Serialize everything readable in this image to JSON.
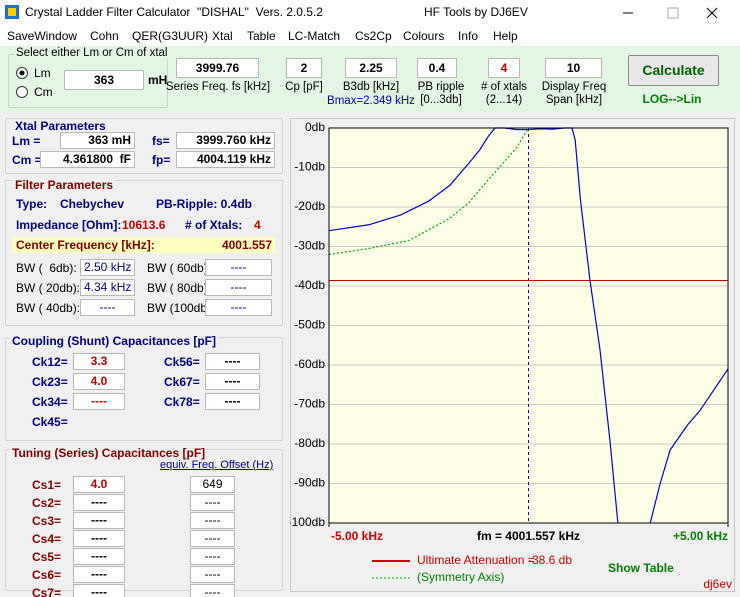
{
  "window": {
    "title": "Crystal Ladder Filter Calculator  \"DISHAL\"  Vers. 2.0.5.2",
    "author": "HF Tools by DJ6EV"
  },
  "menu": [
    "SaveWindow",
    "Cohn",
    "QER(G3UUR)",
    "Xtal",
    "Table",
    "LC-Match",
    "Cs2Cp",
    "Colours",
    "Info",
    "Help"
  ],
  "input_panel": {
    "select_label": "Select either Lm or Cm of xtal",
    "lm_option": "Lm",
    "cm_option": "Cm",
    "lm_value": "363",
    "lm_unit": "mH",
    "fs": {
      "value": "3999.76",
      "label": "Series Freq. fs [kHz]"
    },
    "cp": {
      "value": "2",
      "label": "Cp [pF]"
    },
    "b3db": {
      "value": "2.25",
      "label": "B3db [kHz]",
      "note": "Bmax=2.349 kHz"
    },
    "ripple": {
      "value": "0.4",
      "label": "PB ripple",
      "range": "[0...3db]"
    },
    "xtals": {
      "value": "4",
      "label": "# of xtals",
      "range": "(2...14)"
    },
    "span": {
      "value": "10",
      "label": "Display Freq",
      "unit": "Span [kHz]"
    },
    "calculate": "Calculate",
    "scale_toggle": "LOG-->Lin"
  },
  "xtal_parameters": {
    "title": "Xtal Parameters",
    "lm_label": "Lm =",
    "lm": "363 mH",
    "fs_label": "fs=",
    "fs": "3999.760 kHz",
    "cm_label": "Cm =",
    "cm": "4.361800  fF",
    "fp_label": "fp=",
    "fp": "4004.119 kHz"
  },
  "filter_parameters": {
    "title": "Filter Parameters",
    "type_label": "Type:",
    "type": "Chebychev",
    "ripple": "PB-Ripple: 0.4db",
    "impedance_label": "Impedance [Ohm]:",
    "impedance": "10613.6",
    "xtals_label": "# of Xtals:",
    "xtals": "4",
    "center_label": "Center Frequency [kHz]:",
    "center": "4001.557",
    "bandwidths": [
      {
        "label": "BW (  6db):",
        "value": "2.50 kHz"
      },
      {
        "label": "BW ( 60db):",
        "value": "----"
      },
      {
        "label": "BW ( 20db):",
        "value": "4.34 kHz"
      },
      {
        "label": "BW ( 80db):",
        "value": "----"
      },
      {
        "label": "BW ( 40db):",
        "value": "----"
      },
      {
        "label": "BW (100db):",
        "value": "----"
      }
    ]
  },
  "coupling": {
    "title": "Coupling (Shunt) Capacitances [pF]",
    "rows": [
      {
        "label": "Ck12=",
        "value": "3.3"
      },
      {
        "label": "Ck23=",
        "value": "4.0"
      },
      {
        "label": "Ck34=",
        "value": "----"
      },
      {
        "label": "Ck45="
      },
      {
        "label": "Ck56=",
        "value": "----"
      },
      {
        "label": "Ck67=",
        "value": "----"
      },
      {
        "label": "Ck78=",
        "value": "----"
      }
    ]
  },
  "tuning": {
    "title": "Tuning (Series) Capacitances [pF]",
    "offset_header": "equiv. Freq. Offset (Hz)",
    "rows": [
      {
        "label": "Cs1=",
        "value": "4.0",
        "offset": "649"
      },
      {
        "label": "Cs2=",
        "value": "----",
        "offset": "----"
      },
      {
        "label": "Cs3=",
        "value": "----",
        "offset": "----"
      },
      {
        "label": "Cs4=",
        "value": "----",
        "offset": "----"
      },
      {
        "label": "Cs5=",
        "value": "----",
        "offset": "----"
      },
      {
        "label": "Cs6=",
        "value": "----",
        "offset": "----"
      },
      {
        "label": "Cs7=",
        "value": "----",
        "offset": "----"
      }
    ]
  },
  "chart_data": {
    "type": "line",
    "xlim": [
      -5,
      5
    ],
    "ylim": [
      -100,
      0
    ],
    "grid": true,
    "yticks": [
      {
        "value": 0,
        "label": "0db"
      },
      {
        "value": -10,
        "label": "-10db"
      },
      {
        "value": -20,
        "label": "-20db"
      },
      {
        "value": -30,
        "label": "-30db"
      },
      {
        "value": -40,
        "label": "-40db"
      },
      {
        "value": -50,
        "label": "-50db"
      },
      {
        "value": -60,
        "label": "-60db"
      },
      {
        "value": -70,
        "label": "-70db"
      },
      {
        "value": -80,
        "label": "-80db"
      },
      {
        "value": -90,
        "label": "-90db"
      },
      {
        "value": -100,
        "label": "-100db"
      }
    ],
    "xticks": [
      {
        "value": -5,
        "label": "-5.00 kHz"
      },
      {
        "value": 0,
        "label": "fm = 4001.557 kHz"
      },
      {
        "value": 5,
        "label": "+5.00 kHz"
      }
    ],
    "xtick_colors": [
      "#cc0000",
      "#000000",
      "#008000"
    ],
    "series": [
      {
        "color": "#0000cc",
        "style": "solid",
        "x": [
          -5,
          -4,
          -3.2,
          -2.5,
          -1.97,
          -1.5,
          -1.22,
          -1,
          -0.84,
          -0.6,
          -0.3,
          0,
          0.3,
          0.6,
          0.9,
          1.09,
          1.17,
          1.3,
          1.54,
          1.79,
          2.04,
          2.24,
          2.6,
          3.05,
          3.3,
          3.55,
          4,
          4.3,
          5
        ],
        "values": [
          -26,
          -24.5,
          -22,
          -18.5,
          -14.5,
          -9,
          -5.5,
          -2,
          0,
          0,
          -0.4,
          -0.4,
          -0.2,
          -0.3,
          0,
          0,
          -3,
          -18,
          -38.5,
          -56,
          -79,
          -100,
          null,
          -100,
          -90,
          -81.5,
          -75,
          -71.5,
          -61
        ]
      },
      {
        "name": "(Symmetry Axis)",
        "color": "#00aa00",
        "style": "dotted",
        "x": [
          -5,
          -4,
          -3,
          -2,
          -1.5,
          -1,
          -0.6,
          -0.3,
          0
        ],
        "values": [
          -32,
          -30.5,
          -28.5,
          -23,
          -19,
          -13,
          -8.5,
          -5,
          0
        ]
      }
    ],
    "attenuation": {
      "label": "Ultimate Attenuation =",
      "value": -38.6,
      "value_label": "-38.6 db",
      "color": "#cc0000"
    }
  },
  "footer": {
    "show_table": "Show Table",
    "signature": "dj6ev"
  }
}
